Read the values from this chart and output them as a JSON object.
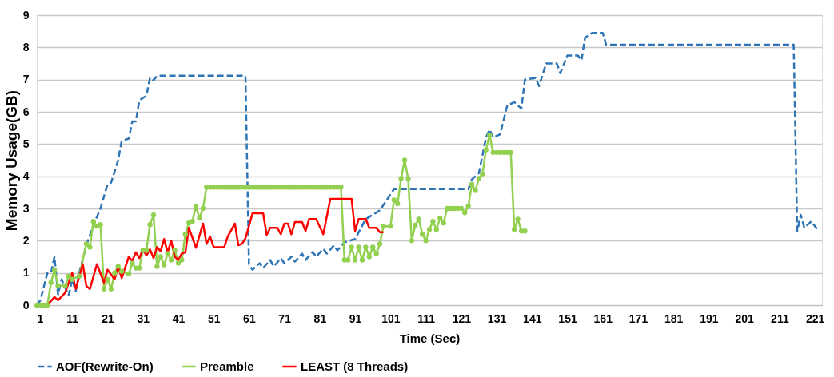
{
  "chart_data": {
    "type": "line",
    "xlabel": "Time (Sec)",
    "ylabel": "Memory Usage(GB)",
    "xlim": [
      1,
      223
    ],
    "xticks": [
      1,
      11,
      21,
      31,
      41,
      51,
      61,
      71,
      81,
      91,
      101,
      111,
      121,
      131,
      141,
      151,
      161,
      171,
      181,
      191,
      201,
      211,
      221
    ],
    "ylim": [
      0,
      9
    ],
    "yticks": [
      0,
      1,
      2,
      3,
      4,
      5,
      6,
      7,
      8,
      9
    ],
    "grid": "y",
    "legend": "bottom",
    "series": [
      {
        "name": "AOF(Rewrite-On)",
        "color": "#2e75b6",
        "line_style": "dashed",
        "marker": "none",
        "x": [
          1,
          2,
          4,
          5,
          6,
          7,
          8,
          10,
          11,
          12,
          13,
          15,
          17,
          19,
          21,
          22,
          24,
          25,
          27,
          28,
          29,
          30,
          32,
          33,
          34,
          35,
          60,
          61,
          62,
          64,
          65,
          67,
          68,
          70,
          71,
          73,
          74,
          76,
          77,
          79,
          80,
          82,
          83,
          85,
          86,
          88,
          91,
          94,
          98,
          102,
          123,
          124,
          126,
          128,
          129,
          130,
          132,
          134,
          136,
          138,
          139,
          142,
          143,
          145,
          148,
          149,
          151,
          154,
          155,
          156,
          158,
          161,
          162,
          215,
          216,
          217,
          218,
          220,
          222
        ],
        "values": [
          0,
          0.15,
          1.0,
          1.0,
          1.5,
          0.33,
          0.8,
          0.3,
          0.8,
          0.43,
          1.0,
          1.86,
          2.48,
          3.0,
          3.75,
          3.8,
          4.5,
          5.1,
          5.17,
          5.7,
          5.7,
          6.36,
          6.5,
          7.06,
          6.98,
          7.12,
          7.12,
          1.24,
          1.1,
          1.3,
          1.15,
          1.4,
          1.2,
          1.45,
          1.3,
          1.5,
          1.35,
          1.6,
          1.4,
          1.65,
          1.5,
          1.75,
          1.6,
          1.85,
          1.7,
          1.95,
          2.05,
          2.67,
          2.94,
          3.6,
          3.6,
          3.9,
          4.1,
          5.2,
          5.45,
          5.2,
          5.3,
          6.2,
          6.3,
          6.1,
          7.0,
          7.05,
          6.8,
          7.5,
          7.5,
          7.2,
          7.75,
          7.75,
          7.6,
          8.3,
          8.45,
          8.45,
          8.08,
          8.08,
          2.3,
          2.8,
          2.4,
          2.6,
          2.3
        ]
      },
      {
        "name": "Preamble",
        "color": "#92d050",
        "line_style": "solid",
        "marker": "circle",
        "x": [
          1,
          2,
          3,
          4,
          5,
          6,
          7,
          9,
          10,
          11,
          13,
          15,
          16,
          17,
          18,
          19,
          20,
          21,
          22,
          23,
          24,
          25,
          27,
          28,
          29,
          30,
          31,
          32,
          33,
          34,
          35,
          36,
          37,
          38,
          39,
          40,
          41,
          42,
          43,
          44,
          45,
          46,
          47,
          48,
          49,
          50,
          51,
          52,
          53,
          54,
          55,
          56,
          57,
          58,
          59,
          60,
          61,
          62,
          63,
          64,
          65,
          66,
          67,
          68,
          69,
          70,
          71,
          72,
          73,
          74,
          75,
          76,
          77,
          78,
          79,
          80,
          81,
          82,
          83,
          84,
          85,
          86,
          87,
          88,
          89,
          90,
          91,
          92,
          93,
          94,
          95,
          96,
          97,
          98,
          99,
          101,
          102,
          103,
          104,
          105,
          106,
          107,
          108,
          109,
          110,
          111,
          112,
          113,
          114,
          115,
          116,
          117,
          118,
          119,
          120,
          121,
          122,
          123,
          124,
          125,
          126,
          127,
          128,
          129,
          130,
          131,
          132,
          133,
          134,
          135,
          136,
          137,
          138,
          139
        ],
        "values": [
          0,
          0,
          0,
          0,
          0.7,
          1.1,
          0.6,
          0.6,
          0.9,
          0.8,
          0.9,
          1.9,
          1.8,
          2.6,
          2.45,
          2.5,
          0.5,
          0.8,
          0.5,
          1.0,
          1.2,
          1.05,
          0.97,
          1.3,
          1.15,
          1.15,
          1.7,
          1.7,
          2.5,
          2.8,
          1.2,
          1.5,
          1.25,
          1.6,
          1.4,
          1.7,
          1.3,
          1.4,
          2.2,
          2.55,
          2.6,
          3.07,
          2.7,
          3.0,
          3.66,
          3.66,
          3.66,
          3.66,
          3.66,
          3.66,
          3.66,
          3.66,
          3.66,
          3.66,
          3.66,
          3.66,
          3.66,
          3.66,
          3.66,
          3.66,
          3.66,
          3.66,
          3.66,
          3.66,
          3.66,
          3.66,
          3.66,
          3.66,
          3.66,
          3.66,
          3.66,
          3.66,
          3.66,
          3.66,
          3.66,
          3.66,
          3.66,
          3.66,
          3.66,
          3.66,
          3.66,
          3.66,
          3.66,
          1.4,
          1.4,
          1.8,
          1.4,
          1.8,
          1.4,
          1.8,
          1.5,
          1.8,
          1.6,
          1.9,
          2.45,
          2.45,
          3.26,
          3.15,
          3.93,
          4.5,
          3.93,
          2.0,
          2.48,
          2.67,
          2.2,
          2.0,
          2.35,
          2.6,
          2.35,
          2.7,
          2.55,
          3.0,
          3.0,
          3.0,
          3.0,
          3.0,
          2.87,
          3.07,
          3.75,
          3.56,
          3.93,
          4.07,
          4.82,
          5.28,
          4.74,
          4.74,
          4.74,
          4.74,
          4.74,
          4.74,
          2.35,
          2.67,
          2.3,
          2.3
        ]
      },
      {
        "name": "LEAST (8 Threads)",
        "color": "#ff0000",
        "line_style": "solid",
        "marker": "none",
        "x": [
          1,
          4,
          6,
          7,
          9,
          11,
          12,
          14,
          15,
          16,
          18,
          20,
          21,
          23,
          24,
          25,
          27,
          28,
          29,
          30,
          31,
          32,
          33,
          34,
          35,
          36,
          37,
          38,
          39,
          40,
          41,
          42,
          43,
          44,
          46,
          48,
          49,
          50,
          51,
          54,
          55,
          57,
          58,
          59,
          60,
          62,
          65,
          66,
          67,
          69,
          70,
          71,
          72,
          73,
          74,
          76,
          77,
          78,
          80,
          82,
          84,
          90,
          91,
          92,
          94,
          95,
          97,
          98,
          99
        ],
        "values": [
          0,
          0,
          0.25,
          0.15,
          0.38,
          1.0,
          0.5,
          1.27,
          0.6,
          0.5,
          1.27,
          0.7,
          1.1,
          0.8,
          1.2,
          0.84,
          1.5,
          1.37,
          1.64,
          1.46,
          1.73,
          1.54,
          1.73,
          1.46,
          1.8,
          1.67,
          2.05,
          1.64,
          2.0,
          1.5,
          1.4,
          1.6,
          1.64,
          2.4,
          1.78,
          2.53,
          1.9,
          2.13,
          1.8,
          1.8,
          2.13,
          2.53,
          1.86,
          1.9,
          2.07,
          2.85,
          2.85,
          2.18,
          2.4,
          2.4,
          2.2,
          2.53,
          2.53,
          2.2,
          2.58,
          2.58,
          2.3,
          2.67,
          2.67,
          2.2,
          3.3,
          3.3,
          2.3,
          2.67,
          2.67,
          2.4,
          2.4,
          2.26,
          2.26
        ]
      }
    ]
  }
}
